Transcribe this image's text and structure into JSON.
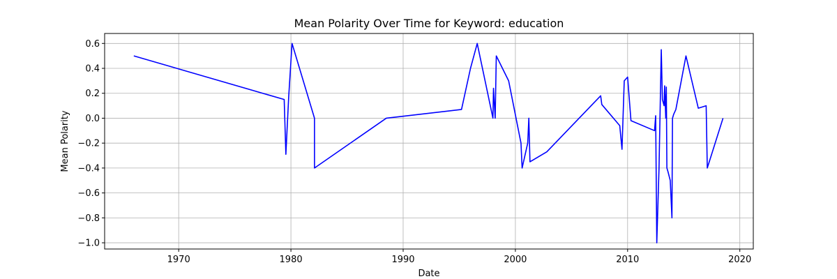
{
  "chart_data": {
    "type": "line",
    "title": "Mean Polarity Over Time for Keyword: education",
    "xlabel": "Date",
    "ylabel": "Mean Polarity",
    "xlim": [
      1963.4,
      2021.2
    ],
    "ylim": [
      -1.05,
      0.68
    ],
    "x_ticks": [
      1970,
      1980,
      1990,
      2000,
      2010,
      2020
    ],
    "x_tick_labels": [
      "1970",
      "1980",
      "1990",
      "2000",
      "2010",
      "2020"
    ],
    "y_ticks": [
      -1.0,
      -0.8,
      -0.6,
      -0.4,
      -0.2,
      0.0,
      0.2,
      0.4,
      0.6
    ],
    "y_tick_labels": [
      "−1.0",
      "−0.8",
      "−0.6",
      "−0.4",
      "−0.2",
      "0.0",
      "0.2",
      "0.4",
      "0.6"
    ],
    "grid": true,
    "line_color": "#0000ff",
    "series": [
      {
        "x": [
          1966.0,
          1979.4,
          1979.55,
          1979.8,
          1980.1,
          1982.1,
          1982.1,
          1988.5,
          1995.2,
          1996.0,
          1996.6,
          1998.0,
          1998.05,
          1998.2,
          1998.3,
          1999.4,
          2000.5,
          2000.6,
          2001.1,
          2001.2,
          2001.3,
          2002.8,
          2007.6,
          2007.7,
          2009.3,
          2009.5,
          2009.7,
          2010.0,
          2010.3,
          2012.4,
          2012.5,
          2012.6,
          2012.8,
          2013.0,
          2013.1,
          2013.25,
          2013.3,
          2013.4,
          2013.45,
          2013.5,
          2013.6,
          2013.8,
          2013.95,
          2014.0,
          2014.1,
          2014.3,
          2015.2,
          2016.3,
          2017.0,
          2017.1,
          2018.5
        ],
        "y": [
          0.5,
          0.15,
          -0.29,
          0.17,
          0.6,
          0.0,
          -0.4,
          0.0,
          0.07,
          0.4,
          0.6,
          0.0,
          0.24,
          0.0,
          0.5,
          0.3,
          -0.2,
          -0.4,
          -0.2,
          0.0,
          -0.35,
          -0.27,
          0.18,
          0.11,
          -0.06,
          -0.25,
          0.3,
          0.33,
          -0.02,
          -0.1,
          0.02,
          -1.0,
          -0.4,
          0.55,
          0.15,
          0.1,
          0.26,
          0.0,
          0.25,
          -0.4,
          -0.43,
          -0.5,
          -0.8,
          0.0,
          0.03,
          0.07,
          0.5,
          0.08,
          0.1,
          -0.4,
          0.0
        ]
      }
    ]
  }
}
